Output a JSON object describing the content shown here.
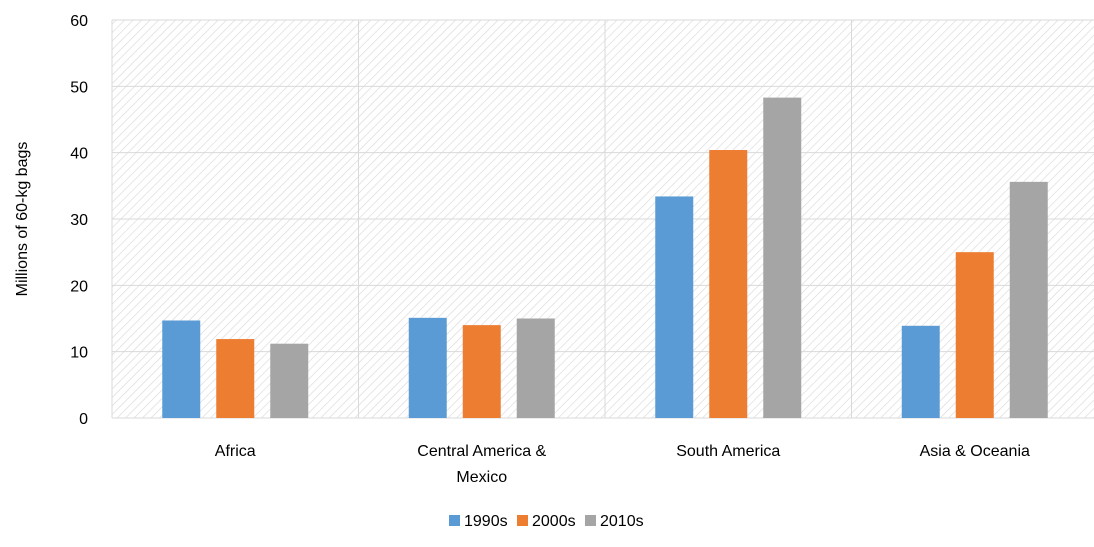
{
  "chart_data": {
    "type": "bar",
    "categories": [
      "Africa",
      "Central America & Mexico",
      "South America",
      "Asia & Oceania"
    ],
    "category_lines": [
      [
        "Africa"
      ],
      [
        "Central America &",
        "Mexico"
      ],
      [
        "South America"
      ],
      [
        "Asia & Oceania"
      ]
    ],
    "series": [
      {
        "name": "1990s",
        "color": "#5B9BD5",
        "values": [
          14.7,
          15.1,
          33.4,
          13.9
        ]
      },
      {
        "name": "2000s",
        "color": "#ED7D31",
        "values": [
          11.9,
          14.0,
          40.4,
          25.0
        ]
      },
      {
        "name": "2010s",
        "color": "#A5A5A5",
        "values": [
          11.2,
          15.0,
          48.3,
          35.6
        ]
      }
    ],
    "ylabel": "Millions of 60-kg bags",
    "xlabel": "",
    "ylim": [
      0,
      60
    ],
    "yticks": [
      0,
      10,
      20,
      30,
      40,
      50,
      60
    ],
    "grid": true,
    "legend_position": "bottom-center",
    "plot_background": "hatched light gray"
  }
}
